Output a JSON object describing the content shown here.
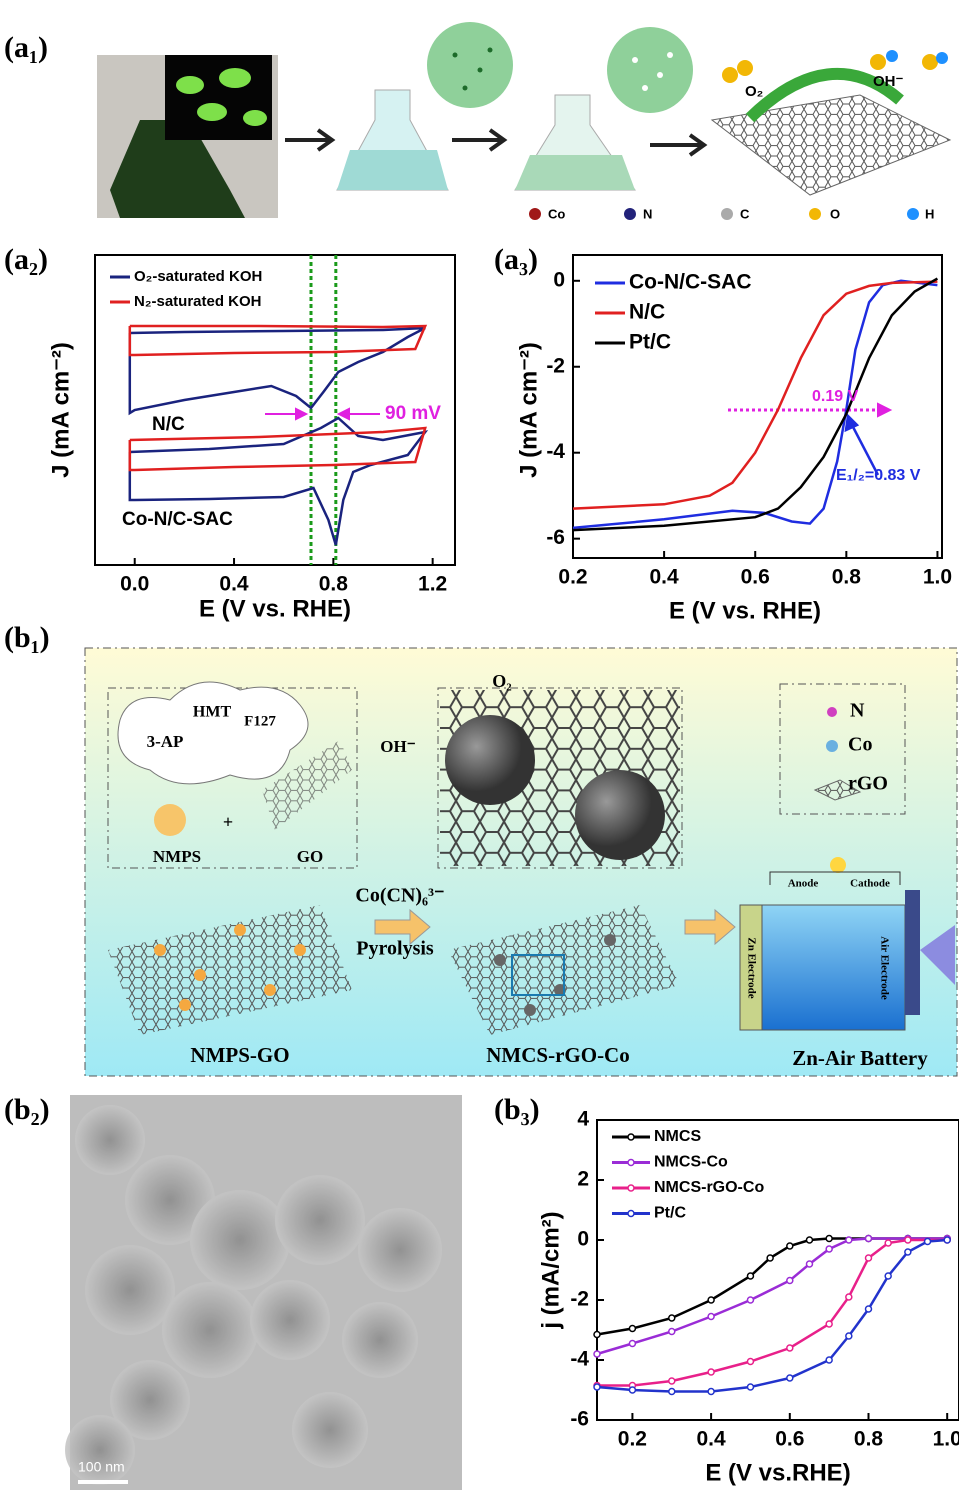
{
  "panel_labels": [
    "(a₁)",
    "(a₂)",
    "(a₃)",
    "(b₁)",
    "(b₂)",
    "(b₃)"
  ],
  "schematic_a1": {
    "labels": [
      "O₂",
      "OH⁻"
    ],
    "legend": [
      "Co",
      "N",
      "C",
      "O",
      "H"
    ]
  },
  "chart_data": [
    {
      "type": "line",
      "x_label": "E (V vs. RHE)",
      "y_label": "J (mA cm⁻²)",
      "xlim": [
        -0.16,
        1.29
      ],
      "ylim": [
        0,
        31
      ],
      "xticks": [
        {
          "value": 0,
          "label": "0.0"
        },
        0.4,
        0.8,
        1.2
      ],
      "vlines": [
        0.71,
        0.81
      ],
      "annotations": [
        "N/C",
        "Co-N/C-SAC",
        "90 mV"
      ],
      "series": [
        {
          "name": "O₂-saturated KOH",
          "color": "#1a237e",
          "x": [
            -0.02,
            0.2,
            0.6,
            1.0,
            1.17,
            1.1,
            1.0,
            0.9,
            0.82,
            0.76,
            0.71,
            0.65,
            0.55,
            0.4,
            0.2,
            0,
            -0.02,
            -0.02,
            null,
            -0.02,
            0.3,
            0.6,
            0.75,
            0.82,
            0.9,
            1.0,
            1.17,
            1.1,
            0.95,
            0.88,
            0.84,
            0.81,
            0.78,
            0.72,
            0.6,
            0.3,
            0,
            -0.02,
            -0.02
          ],
          "values": [
            23.2,
            23.3,
            23.4,
            23.5,
            23.7,
            22.8,
            21.3,
            20.3,
            19.3,
            17.3,
            15.7,
            16.9,
            17.9,
            17.3,
            16.5,
            15.5,
            15.2,
            23.2,
            null,
            11.3,
            11.6,
            12.1,
            13.7,
            14.7,
            12.9,
            12.5,
            13.3,
            11.0,
            10.0,
            9.3,
            6.5,
            2.0,
            4.5,
            7.7,
            6.8,
            6.6,
            6.5,
            6.5,
            11.3
          ]
        },
        {
          "name": "N₂-saturated KOH",
          "color": "#e02020",
          "x": [
            -0.02,
            0.5,
            1.0,
            1.17,
            1.13,
            0.8,
            0.4,
            0,
            -0.02,
            -0.02,
            null,
            -0.02,
            0.5,
            1.0,
            1.17,
            1.13,
            0.8,
            0.4,
            0,
            -0.02,
            -0.02
          ],
          "values": [
            23.9,
            23.9,
            23.8,
            23.9,
            21.6,
            21.3,
            21.2,
            21.0,
            21.0,
            23.9,
            null,
            12.5,
            12.8,
            13.3,
            13.7,
            10.3,
            10.0,
            9.8,
            9.5,
            9.5,
            12.5
          ]
        }
      ]
    },
    {
      "type": "line",
      "x_label": "E (V vs. RHE)",
      "y_label": "J (mA cm⁻²)",
      "xlim": [
        0.2,
        1.01
      ],
      "ylim": [
        -6.45,
        0.6
      ],
      "xticks": [
        0.2,
        0.4,
        0.6,
        0.8,
        {
          "value": 1,
          "label": "1.0"
        }
      ],
      "yticks": [
        0,
        -2,
        -4,
        -6
      ],
      "annotations": [
        "0.19 V",
        "E₁/₂=0.83 V"
      ],
      "series": [
        {
          "name": "Co-N/C-SAC",
          "color": "#1f2de0",
          "x": [
            0.2,
            0.4,
            0.55,
            0.62,
            0.68,
            0.72,
            0.75,
            0.78,
            0.8,
            0.82,
            0.85,
            0.88,
            0.92,
            1.0
          ],
          "values": [
            -5.75,
            -5.55,
            -5.35,
            -5.4,
            -5.6,
            -5.65,
            -5.3,
            -4.2,
            -3.0,
            -1.6,
            -0.5,
            -0.1,
            0.0,
            -0.1
          ]
        },
        {
          "name": "N/C",
          "color": "#e02020",
          "x": [
            0.2,
            0.4,
            0.5,
            0.55,
            0.6,
            0.65,
            0.7,
            0.75,
            0.8,
            0.85,
            0.9,
            1.0
          ],
          "values": [
            -5.3,
            -5.2,
            -5.0,
            -4.7,
            -4.0,
            -3.0,
            -1.8,
            -0.8,
            -0.3,
            -0.12,
            -0.05,
            -0.02
          ]
        },
        {
          "name": "Pt/C",
          "color": "#000000",
          "x": [
            0.2,
            0.4,
            0.6,
            0.65,
            0.7,
            0.75,
            0.8,
            0.85,
            0.9,
            0.95,
            1.0
          ],
          "values": [
            -5.8,
            -5.7,
            -5.5,
            -5.3,
            -4.8,
            -4.1,
            -3.1,
            -1.8,
            -0.8,
            -0.25,
            0.05
          ]
        }
      ]
    },
    {
      "type": "line",
      "x_label": "E (V vs.RHE)",
      "y_label": "j (mA/cm²)",
      "markers": true,
      "xlim": [
        0.11,
        1.03
      ],
      "ylim": [
        -6,
        4
      ],
      "xticks": [
        0.2,
        0.4,
        0.6,
        0.8,
        {
          "value": 1,
          "label": "1.0"
        }
      ],
      "yticks": [
        4,
        2,
        0,
        -2,
        -4,
        -6
      ],
      "series": [
        {
          "name": "NMCS",
          "color": "#000000",
          "x": [
            0.11,
            0.2,
            0.3,
            0.4,
            0.5,
            0.55,
            0.6,
            0.65,
            0.7,
            0.8,
            0.9,
            1.0
          ],
          "values": [
            -3.15,
            -2.95,
            -2.6,
            -2.0,
            -1.2,
            -0.6,
            -0.2,
            0.0,
            0.05,
            0.05,
            0.05,
            0.05
          ]
        },
        {
          "name": "NMCS-Co",
          "color": "#9a2cd6",
          "x": [
            0.11,
            0.2,
            0.3,
            0.4,
            0.5,
            0.6,
            0.65,
            0.7,
            0.75,
            0.8,
            0.9,
            1.0
          ],
          "values": [
            -3.8,
            -3.45,
            -3.05,
            -2.55,
            -2.0,
            -1.35,
            -0.8,
            -0.3,
            0.0,
            0.05,
            0.05,
            0.05
          ]
        },
        {
          "name": "NMCS-rGO-Co",
          "color": "#e8208a",
          "x": [
            0.11,
            0.2,
            0.3,
            0.4,
            0.5,
            0.6,
            0.7,
            0.75,
            0.8,
            0.85,
            0.9,
            1.0
          ],
          "values": [
            -4.85,
            -4.85,
            -4.7,
            -4.4,
            -4.05,
            -3.6,
            -2.8,
            -1.9,
            -0.6,
            -0.1,
            0.0,
            0.0
          ]
        },
        {
          "name": "Pt/C",
          "color": "#2233cc",
          "x": [
            0.11,
            0.2,
            0.3,
            0.4,
            0.5,
            0.6,
            0.7,
            0.75,
            0.8,
            0.85,
            0.9,
            0.95,
            1.0
          ],
          "values": [
            -4.9,
            -5.0,
            -5.05,
            -5.05,
            -4.9,
            -4.6,
            -4.0,
            -3.2,
            -2.3,
            -1.2,
            -0.4,
            -0.05,
            0.0
          ]
        }
      ]
    }
  ],
  "schematic_b1": {
    "texts": [
      "HMT",
      "F127",
      "3-AP",
      "+",
      "NMPS",
      "GO",
      "OH⁻",
      "O₂",
      "N",
      "Co",
      "rGO",
      "Co(CN)₆³⁻",
      "Pyrolysis",
      "NMPS-GO",
      "NMCS-rGO-Co",
      "Zn-Air Battery",
      "Anode",
      "Cathode",
      "Zn Electrode",
      "Air Electrode"
    ]
  },
  "tem_b2": {
    "scale_bar": "100 nm"
  }
}
